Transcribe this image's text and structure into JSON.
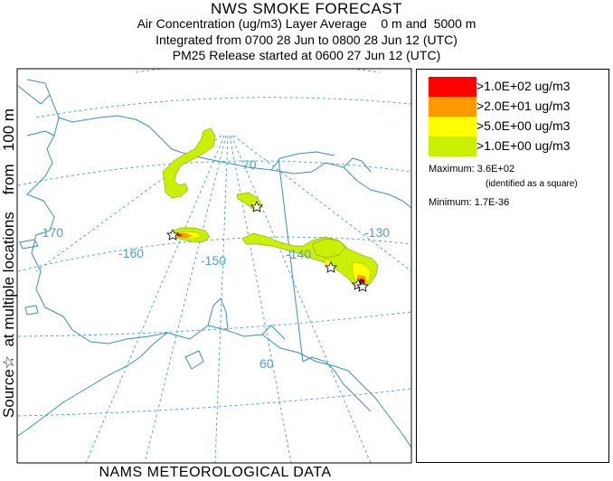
{
  "title": {
    "line1": "NWS SMOKE FORECAST",
    "line2": "Air Concentration (ug/m3) Layer Average    0 m and  5000 m",
    "line3": "Integrated from 0700 28 Jun to 0800 28 Jun 12 (UTC)",
    "line4": "PM25 Release started at 0600 27 Jun 12 (UTC)"
  },
  "side_label": {
    "source": "Source",
    "star": "☆",
    "text": "  at multiple locations    from   100 m"
  },
  "footer": "NAMS METEOROLOGICAL DATA",
  "map": {
    "grid_labels": {
      "lon_170": "-170",
      "lon_160": "-160",
      "lon_150": "-150",
      "lon_140": "-140",
      "lon_130": "-130",
      "lat_70": "70",
      "lat_60": "60"
    },
    "colors": {
      "grid": "#4aa0c8",
      "coast": "#3a8ec0",
      "level_1": "#c8f000",
      "level_2": "#ffff00",
      "level_3": "#ff9900",
      "level_4": "#ff0000"
    }
  },
  "legend": {
    "items": [
      {
        "label": ">1.0E+02 ug/m3",
        "color": "#ff0000"
      },
      {
        "label": ">2.0E+01 ug/m3",
        "color": "#ff9900"
      },
      {
        "label": ">5.0E+00 ug/m3",
        "color": "#ffff00"
      },
      {
        "label": ">1.0E+00 ug/m3",
        "color": "#c8f000"
      }
    ],
    "maximum": "Maximum: 3.6E+02",
    "maximum_note": "(identified as a square)",
    "minimum": "Minimum: 1.7E-36"
  }
}
